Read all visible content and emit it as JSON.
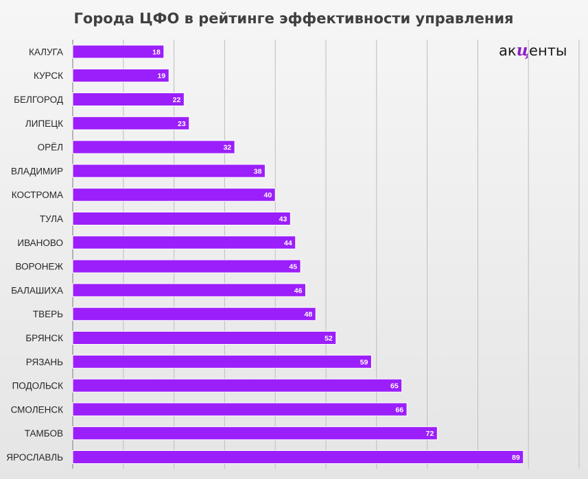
{
  "chart_data": {
    "type": "bar",
    "orientation": "horizontal",
    "title": "Города ЦФО в рейтинге эффективности управления",
    "categories": [
      "КАЛУГА",
      "КУРСК",
      "БЕЛГОРОД",
      "ЛИПЕЦК",
      "ОРЁЛ",
      "ВЛАДИМИР",
      "КОСТРОМА",
      "ТУЛА",
      "ИВАНОВО",
      "ВОРОНЕЖ",
      "БАЛАШИХА",
      "ТВЕРЬ",
      "БРЯНСК",
      "РЯЗАНЬ",
      "ПОДОЛЬСК",
      "СМОЛЕНСК",
      "ТАМБОВ",
      "ЯРОСЛАВЛЬ"
    ],
    "values": [
      18,
      19,
      22,
      23,
      32,
      38,
      40,
      43,
      44,
      45,
      46,
      48,
      52,
      59,
      65,
      66,
      72,
      89
    ],
    "xlim": [
      0,
      100
    ],
    "grid": true,
    "data_labels": true,
    "bar_color": "#9b1ffa"
  },
  "branding": {
    "logo_prefix": "ак",
    "logo_accent": "ц",
    "logo_suffix": "енты"
  },
  "colors": {
    "bar": "#9b1ffa",
    "logo_accent": "#8e1fc4",
    "title": "#404040"
  }
}
